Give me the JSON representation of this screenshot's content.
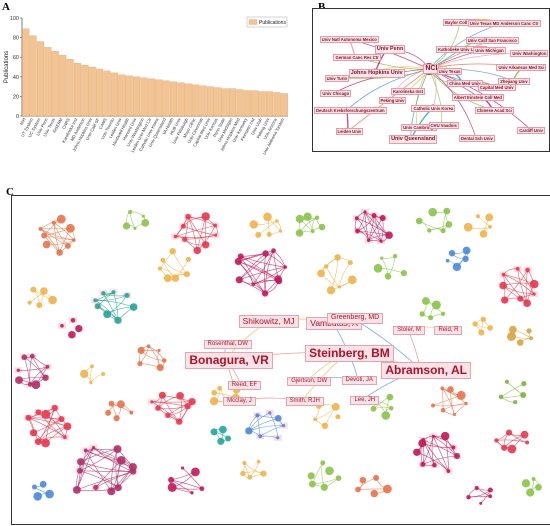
{
  "panels": {
    "a": "A",
    "b": "B",
    "c": "C"
  },
  "chart_data": [
    {
      "type": "bar",
      "legend": "Publications",
      "legend_position": "top-right",
      "ylabel": "Publications",
      "ylim": [
        0,
        100
      ],
      "yticks": [
        "0",
        "20",
        "40",
        "60",
        "80",
        "100"
      ],
      "bar_color": "#f3c493",
      "categories": [
        "NIH",
        "UT System",
        "UC System",
        "Univ Penn",
        "Univ Texas",
        "INSERM",
        "CNRS",
        "Karolinska Inst",
        "MD Anderson",
        "Johns Hopkins Univ",
        "Univ Calif SF",
        "CAMS",
        "Univ Toronto",
        "Leiden Univ",
        "Northwell Health",
        "Harvard Univ",
        "Univ Washington",
        "Leiden Univ Med Ctr",
        "Catholic Univ Korea",
        "Univ Queensland",
        "VA Health",
        "HUB Univ",
        "Univ Pittsburgh",
        "Mayo Clinic",
        "Univ Cincinnati",
        "Capital Med Univ",
        "Univ Kansas",
        "Penn State",
        "Univ Michigan",
        "Johns Hopkins Med",
        "Univ Kentucky",
        "Feinstein Inst",
        "Univ Utah",
        "Peking Univ",
        "Univ Arizona",
        "Univ Alabama System"
      ],
      "values": [
        89,
        82,
        76,
        70,
        66,
        62,
        58,
        54,
        52,
        50,
        48,
        46,
        44,
        42,
        41,
        40,
        39,
        38,
        37,
        36,
        35,
        34,
        33,
        32,
        31,
        30,
        29,
        28,
        28,
        27,
        26,
        26,
        25,
        25,
        24,
        23
      ]
    },
    {
      "type": "network",
      "nodes": [
        "NCI",
        "Univ Penn",
        "Johns Hopkins Univ",
        "Baylor Coll Med",
        "Univ Texas MD Anderson Canc Ctr",
        "Univ Calif San Francisco",
        "Katholieke Univ Leuven",
        "Univ Michigan",
        "Univ Washington",
        "German Canc Res Ctr",
        "Univ Natl Autonoma Mexico",
        "Univ Texas",
        "China Med Univ",
        "Zhejiang Univ",
        "Univ Arkansas Med Sci",
        "Capital Med Univ",
        "Albert Einstein Coll Med",
        "Catholic Univ Korea",
        "Chinese Acad Sci",
        "Cardiff Univ",
        "Univ Cambridge",
        "CHU Vaudois",
        "Deutsch Krebsforschungszentrum",
        "Leiden Univ",
        "Univ Queensland",
        "Dental Sch Univ",
        "Peking Univ",
        "Univ Turin",
        "Univ Chicago",
        "Karolinska Inst"
      ]
    },
    {
      "type": "network",
      "labeled_nodes": [
        "Shikowitz, MJ",
        "Vambutas, A",
        "Greenberg, MD",
        "Rosenthal, DW",
        "Bonagura, VR",
        "Steinberg, BM",
        "Stoler, M",
        "Reid, R",
        "Abramson, AL",
        "Reed, EF",
        "Gjertson, DW",
        "Devoti, JA",
        "Mcclay, J",
        "Smith, RJH",
        "Lee, JH"
      ]
    }
  ],
  "colors": {
    "bar": "#f3c493",
    "bar_edge": "#d9a06a",
    "label_bg": "#fbe3e8",
    "label_text": "#b0122a",
    "cluster_palette": [
      "#c2185b",
      "#e6734a",
      "#f0b24a",
      "#8bc34a",
      "#26a69a",
      "#4a89d9",
      "#e53950",
      "#b0306a",
      "#d9a43c",
      "#7cb342",
      "#f48fb1"
    ]
  }
}
